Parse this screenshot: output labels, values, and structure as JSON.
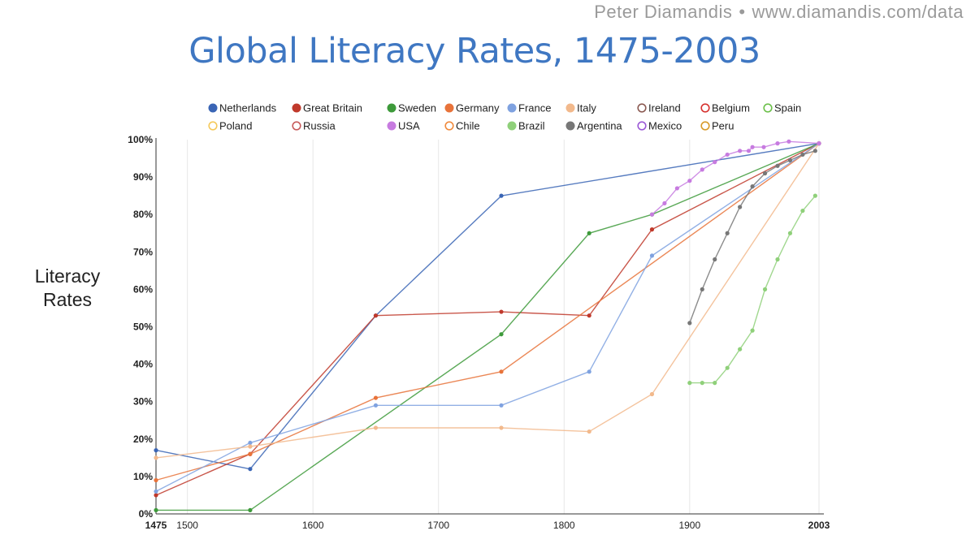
{
  "header": {
    "author": "Peter Diamandis",
    "separator": "•",
    "url": "www.diamandis.com/data"
  },
  "chart_data": {
    "type": "line",
    "title": "Global Literacy Rates, 1475-2003",
    "ylabel_line1": "Literacy",
    "ylabel_line2": "Rates",
    "xlabel": "",
    "xlim": [
      1475,
      2003
    ],
    "ylim": [
      0,
      100
    ],
    "x_ticks": [
      {
        "value": 1475,
        "label": "1475",
        "bold": true
      },
      {
        "value": 1500,
        "label": "1500",
        "bold": false
      },
      {
        "value": 1600,
        "label": "1600",
        "bold": false
      },
      {
        "value": 1700,
        "label": "1700",
        "bold": false
      },
      {
        "value": 1800,
        "label": "1800",
        "bold": false
      },
      {
        "value": 1900,
        "label": "1900",
        "bold": false
      },
      {
        "value": 2003,
        "label": "2003",
        "bold": true
      }
    ],
    "y_ticks": [
      {
        "value": 0,
        "label": "0%"
      },
      {
        "value": 10,
        "label": "10%"
      },
      {
        "value": 20,
        "label": "20%"
      },
      {
        "value": 30,
        "label": "30%"
      },
      {
        "value": 40,
        "label": "40%"
      },
      {
        "value": 50,
        "label": "50%"
      },
      {
        "value": 60,
        "label": "60%"
      },
      {
        "value": 70,
        "label": "70%"
      },
      {
        "value": 80,
        "label": "80%"
      },
      {
        "value": 90,
        "label": "90%"
      },
      {
        "value": 100,
        "label": "100%"
      }
    ],
    "grid": "vertical",
    "legend_position": "top",
    "series": [
      {
        "name": "Netherlands",
        "color": "#3a65b5",
        "marker": "filled",
        "points": [
          [
            1475,
            17
          ],
          [
            1550,
            12
          ],
          [
            1650,
            53
          ],
          [
            1750,
            85
          ],
          [
            2003,
            99
          ]
        ]
      },
      {
        "name": "Great Britain",
        "color": "#c0392b",
        "marker": "filled",
        "points": [
          [
            1475,
            5
          ],
          [
            1550,
            16
          ],
          [
            1650,
            53
          ],
          [
            1750,
            54
          ],
          [
            1820,
            53
          ],
          [
            1870,
            76
          ],
          [
            2003,
            99
          ]
        ]
      },
      {
        "name": "Sweden",
        "color": "#3d9a3a",
        "marker": "filled",
        "points": [
          [
            1475,
            1
          ],
          [
            1550,
            1
          ],
          [
            1750,
            48
          ],
          [
            1820,
            75
          ],
          [
            1870,
            80
          ],
          [
            2003,
            99
          ]
        ]
      },
      {
        "name": "Germany",
        "color": "#e8733a",
        "marker": "filled",
        "points": [
          [
            1475,
            9
          ],
          [
            1550,
            16
          ],
          [
            1650,
            31
          ],
          [
            1750,
            38
          ],
          [
            2003,
            99
          ]
        ]
      },
      {
        "name": "France",
        "color": "#7fa2e0",
        "marker": "filled",
        "points": [
          [
            1475,
            6
          ],
          [
            1550,
            19
          ],
          [
            1650,
            29
          ],
          [
            1750,
            29
          ],
          [
            1820,
            38
          ],
          [
            1870,
            69
          ],
          [
            2003,
            99
          ]
        ]
      },
      {
        "name": "Italy",
        "color": "#f2b98c",
        "marker": "filled",
        "points": [
          [
            1475,
            15
          ],
          [
            1550,
            18
          ],
          [
            1650,
            23
          ],
          [
            1750,
            23
          ],
          [
            1820,
            22
          ],
          [
            1870,
            32
          ],
          [
            2003,
            99
          ]
        ]
      },
      {
        "name": "Ireland",
        "color": "#8b5a52",
        "marker": "hollow",
        "points": []
      },
      {
        "name": "Belgium",
        "color": "#d6322f",
        "marker": "hollow",
        "points": []
      },
      {
        "name": "Spain",
        "color": "#6cc04a",
        "marker": "hollow",
        "points": []
      },
      {
        "name": "Poland",
        "color": "#f5c95a",
        "marker": "hollow",
        "points": []
      },
      {
        "name": "Russia",
        "color": "#c75b5b",
        "marker": "hollow",
        "points": []
      },
      {
        "name": "USA",
        "color": "#c77be0",
        "marker": "filled",
        "points": [
          [
            1870,
            80
          ],
          [
            1880,
            83
          ],
          [
            1890,
            87
          ],
          [
            1900,
            89
          ],
          [
            1910,
            92
          ],
          [
            1920,
            94
          ],
          [
            1930,
            96
          ],
          [
            1940,
            97
          ],
          [
            1947,
            97
          ],
          [
            1950,
            98
          ],
          [
            1959,
            98
          ],
          [
            1970,
            99
          ],
          [
            1979,
            99.5
          ],
          [
            2003,
            99
          ]
        ]
      },
      {
        "name": "Chile",
        "color": "#f08a3c",
        "marker": "hollow",
        "points": []
      },
      {
        "name": "Brazil",
        "color": "#8fd07a",
        "marker": "filled",
        "points": [
          [
            1900,
            35
          ],
          [
            1910,
            35
          ],
          [
            1920,
            35
          ],
          [
            1930,
            39
          ],
          [
            1940,
            44
          ],
          [
            1950,
            49
          ],
          [
            1960,
            60
          ],
          [
            1970,
            68
          ],
          [
            1980,
            75
          ],
          [
            1990,
            81
          ],
          [
            2000,
            85
          ]
        ]
      },
      {
        "name": "Argentina",
        "color": "#777777",
        "marker": "filled",
        "points": [
          [
            1900,
            51
          ],
          [
            1910,
            60
          ],
          [
            1920,
            68
          ],
          [
            1930,
            75
          ],
          [
            1940,
            82
          ],
          [
            1950,
            87.5
          ],
          [
            1960,
            91
          ],
          [
            1970,
            93
          ],
          [
            1980,
            94.5
          ],
          [
            1990,
            96
          ],
          [
            2000,
            97
          ]
        ]
      },
      {
        "name": "Mexico",
        "color": "#9b59d6",
        "marker": "hollow",
        "points": []
      },
      {
        "name": "Peru",
        "color": "#d79a2a",
        "marker": "hollow",
        "points": []
      }
    ]
  }
}
